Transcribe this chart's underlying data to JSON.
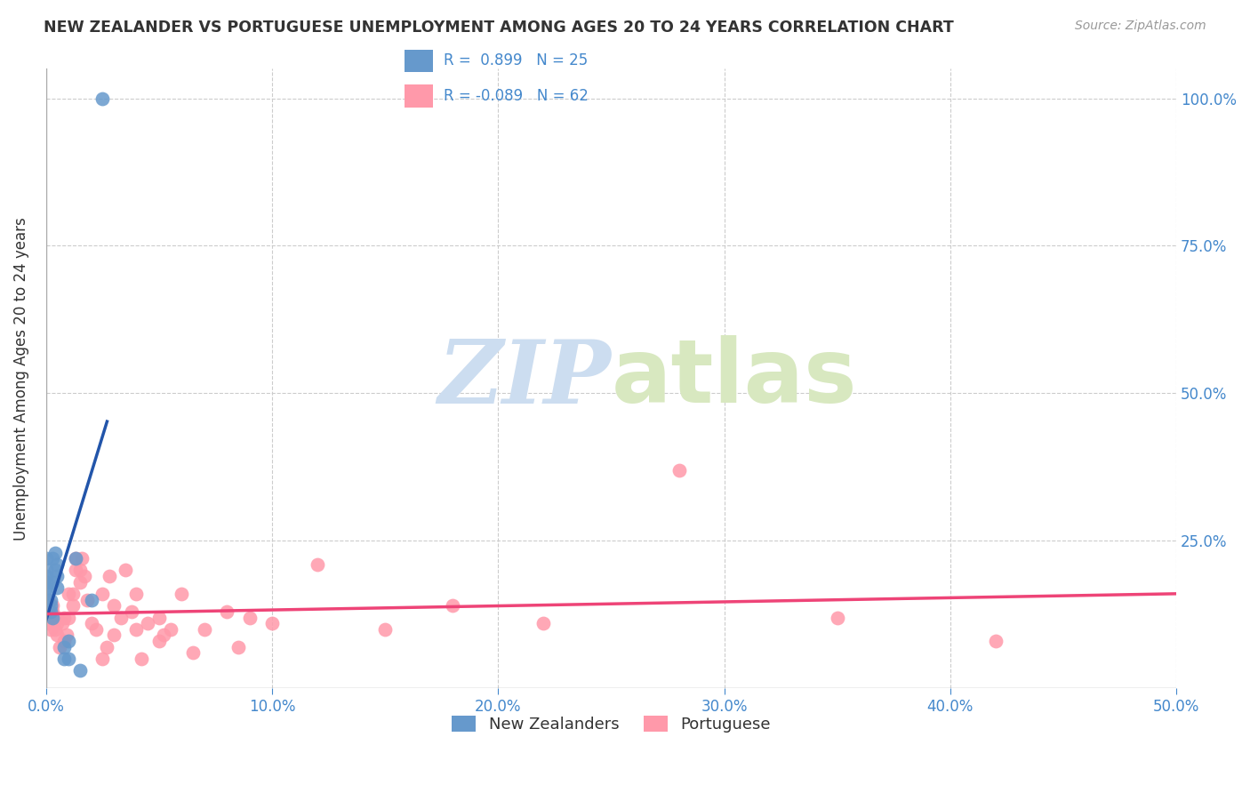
{
  "title": "NEW ZEALANDER VS PORTUGUESE UNEMPLOYMENT AMONG AGES 20 TO 24 YEARS CORRELATION CHART",
  "source": "Source: ZipAtlas.com",
  "ylabel": "Unemployment Among Ages 20 to 24 years",
  "xlim": [
    0.0,
    0.5
  ],
  "ylim": [
    0.0,
    1.05
  ],
  "nz_color": "#6699cc",
  "pt_color": "#ff99aa",
  "nz_line_color": "#2255aa",
  "pt_line_color": "#ee4477",
  "nz_R": 0.899,
  "nz_N": 25,
  "pt_R": -0.089,
  "pt_N": 62,
  "watermark_zip": "ZIP",
  "watermark_atlas": "atlas",
  "watermark_color": "#ccddf0",
  "legend_label_nz": "New Zealanders",
  "legend_label_pt": "Portuguese",
  "nz_points_x": [
    0.0,
    0.0,
    0.0,
    0.0,
    0.0,
    0.0,
    0.002,
    0.002,
    0.002,
    0.003,
    0.003,
    0.003,
    0.004,
    0.004,
    0.005,
    0.005,
    0.005,
    0.008,
    0.008,
    0.01,
    0.01,
    0.013,
    0.015,
    0.02,
    0.025
  ],
  "nz_points_y": [
    0.18,
    0.2,
    0.22,
    0.17,
    0.19,
    0.16,
    0.15,
    0.14,
    0.13,
    0.12,
    0.18,
    0.22,
    0.2,
    0.23,
    0.17,
    0.19,
    0.21,
    0.05,
    0.07,
    0.05,
    0.08,
    0.22,
    0.03,
    0.15,
    1.0
  ],
  "pt_points_x": [
    0.0,
    0.0,
    0.001,
    0.001,
    0.001,
    0.002,
    0.002,
    0.003,
    0.003,
    0.004,
    0.005,
    0.005,
    0.005,
    0.006,
    0.007,
    0.008,
    0.008,
    0.009,
    0.01,
    0.01,
    0.012,
    0.012,
    0.013,
    0.013,
    0.015,
    0.015,
    0.016,
    0.017,
    0.018,
    0.02,
    0.022,
    0.025,
    0.025,
    0.027,
    0.028,
    0.03,
    0.03,
    0.033,
    0.035,
    0.038,
    0.04,
    0.04,
    0.042,
    0.045,
    0.05,
    0.05,
    0.052,
    0.055,
    0.06,
    0.065,
    0.07,
    0.08,
    0.085,
    0.09,
    0.1,
    0.12,
    0.15,
    0.18,
    0.22,
    0.28,
    0.35,
    0.42
  ],
  "pt_points_y": [
    0.12,
    0.14,
    0.11,
    0.13,
    0.15,
    0.12,
    0.1,
    0.13,
    0.14,
    0.1,
    0.11,
    0.12,
    0.09,
    0.07,
    0.11,
    0.08,
    0.12,
    0.09,
    0.16,
    0.12,
    0.14,
    0.16,
    0.2,
    0.22,
    0.2,
    0.18,
    0.22,
    0.19,
    0.15,
    0.11,
    0.1,
    0.05,
    0.16,
    0.07,
    0.19,
    0.14,
    0.09,
    0.12,
    0.2,
    0.13,
    0.1,
    0.16,
    0.05,
    0.11,
    0.08,
    0.12,
    0.09,
    0.1,
    0.16,
    0.06,
    0.1,
    0.13,
    0.07,
    0.12,
    0.11,
    0.21,
    0.1,
    0.14,
    0.11,
    0.37,
    0.12,
    0.08
  ]
}
